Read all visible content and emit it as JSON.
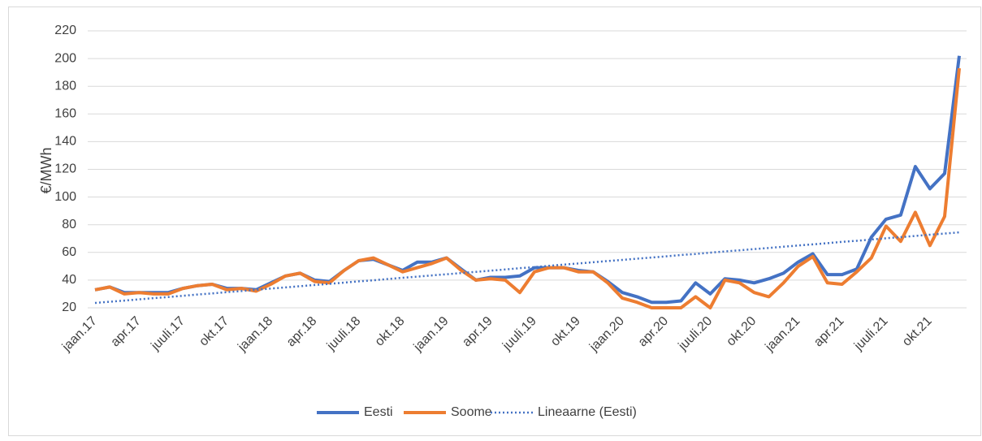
{
  "chart_data": {
    "type": "line",
    "ylabel": "€/MWh",
    "categories": [
      "jaan.17",
      null,
      null,
      "apr.17",
      null,
      null,
      "juuli.17",
      null,
      null,
      "okt.17",
      null,
      null,
      "jaan.18",
      null,
      null,
      "apr.18",
      null,
      null,
      "juuli.18",
      null,
      null,
      "okt.18",
      null,
      null,
      "jaan.19",
      null,
      null,
      "apr.19",
      null,
      null,
      "juuli.19",
      null,
      null,
      "okt.19",
      null,
      null,
      "jaan.20",
      null,
      null,
      "apr.20",
      null,
      null,
      "juuli.20",
      null,
      null,
      "okt.20",
      null,
      null,
      "jaan.21",
      null,
      null,
      "apr.21",
      null,
      null,
      "juuli.21",
      null,
      null,
      "okt.21",
      null,
      null
    ],
    "series": [
      {
        "name": "Eesti",
        "color": "#4472c4",
        "dash": "solid",
        "values": [
          33,
          35,
          31,
          31,
          31,
          31,
          34,
          36,
          37,
          34,
          34,
          33,
          38,
          43,
          45,
          40,
          39,
          47,
          54,
          55,
          51,
          47,
          53,
          53,
          56,
          48,
          40,
          42,
          42,
          43,
          49,
          49,
          49,
          47,
          46,
          39,
          31,
          28,
          24,
          24,
          25,
          38,
          30,
          41,
          40,
          38,
          41,
          45,
          53,
          59,
          44,
          44,
          48,
          71,
          84,
          87,
          122,
          106,
          117,
          202
        ]
      },
      {
        "name": "Soome",
        "color": "#ed7d31",
        "dash": "solid",
        "values": [
          33,
          35,
          30,
          31,
          30,
          30,
          34,
          36,
          37,
          33,
          34,
          32,
          37,
          43,
          45,
          39,
          38,
          47,
          54,
          56,
          51,
          46,
          49,
          52,
          56,
          47,
          40,
          41,
          40,
          31,
          46,
          49,
          49,
          46,
          46,
          38,
          27,
          24,
          20,
          20,
          20,
          28,
          20,
          40,
          38,
          31,
          28,
          38,
          50,
          57,
          38,
          37,
          46,
          56,
          79,
          68,
          89,
          65,
          86,
          193
        ]
      },
      {
        "name": "Lineaarne (Eesti)",
        "color": "#4472c4",
        "dash": "dotted",
        "values": [
          23.5,
          24.4,
          25.2,
          26.1,
          27.0,
          27.8,
          28.7,
          29.6,
          30.4,
          31.3,
          32.1,
          33.0,
          33.9,
          34.7,
          35.6,
          36.5,
          37.3,
          38.2,
          39.1,
          39.9,
          40.8,
          41.7,
          42.5,
          43.4,
          44.2,
          45.1,
          46.0,
          46.8,
          47.7,
          48.6,
          49.4,
          50.3,
          51.2,
          52.0,
          52.9,
          53.8,
          54.6,
          55.5,
          56.3,
          57.2,
          58.1,
          58.9,
          59.8,
          60.7,
          61.5,
          62.4,
          63.2,
          64.1,
          65.0,
          65.8,
          66.7,
          67.6,
          68.4,
          69.3,
          70.2,
          71.0,
          71.9,
          72.8,
          73.6,
          74.5
        ]
      }
    ],
    "ylim": [
      20,
      220
    ],
    "yticks": [
      20,
      40,
      60,
      80,
      100,
      120,
      140,
      160,
      180,
      200,
      220
    ],
    "grid": true,
    "legend": "bottom"
  }
}
